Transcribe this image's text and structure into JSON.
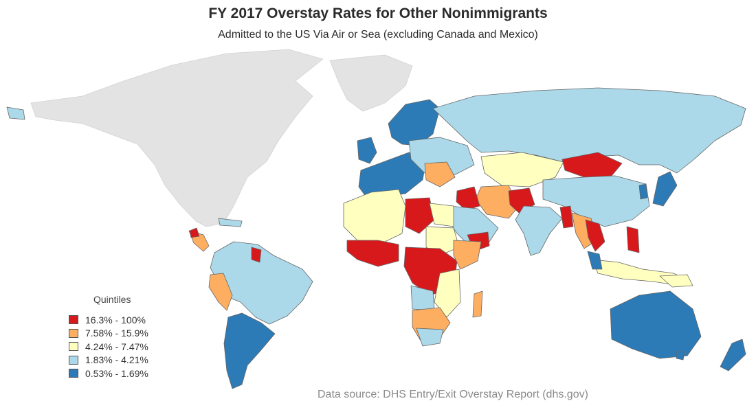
{
  "title": "FY 2017 Overstay Rates for Other Nonimmigrants",
  "subtitle": "Admitted to the US Via Air or Sea (excluding Canada and Mexico)",
  "legend": {
    "title": "Quintiles",
    "items": [
      {
        "label": "16.3% - 100%",
        "color": "#d7191c"
      },
      {
        "label": "7.58% - 15.9%",
        "color": "#fdae61"
      },
      {
        "label": "4.24% - 7.47%",
        "color": "#ffffbf"
      },
      {
        "label": "1.83% - 4.21%",
        "color": "#abd9e9"
      },
      {
        "label": "0.53% - 1.69%",
        "color": "#2c7bb6"
      }
    ]
  },
  "no_data_color": "#e3e3e3",
  "source": "Data source: DHS Entry/Exit Overstay Report (dhs.gov)"
}
